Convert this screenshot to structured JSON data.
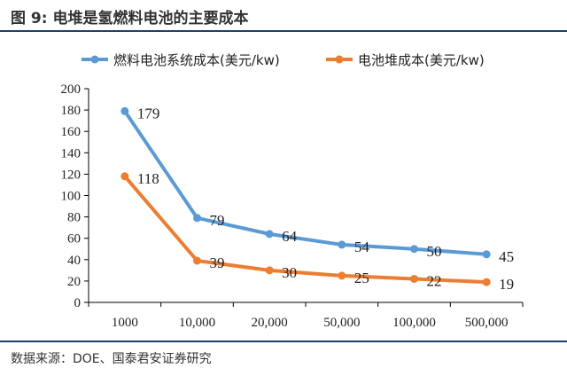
{
  "title": "图 9:  电堆是氢燃料电池的主要成本",
  "source": "数据来源：DOE、国泰君安证券研究",
  "chart_data": {
    "type": "line",
    "categories": [
      "1000",
      "10,000",
      "20,000",
      "50,000",
      "100,000",
      "500,000"
    ],
    "series": [
      {
        "name": "燃料电池系统成本(美元/kw)",
        "color": "#5b9bd5",
        "values": [
          179,
          79,
          64,
          54,
          50,
          45
        ]
      },
      {
        "name": "电池堆成本(美元/kw)",
        "color": "#ed7d31",
        "values": [
          118,
          39,
          30,
          25,
          22,
          19
        ]
      }
    ],
    "ylim": [
      0,
      200
    ],
    "yticks": [
      0,
      20,
      40,
      60,
      80,
      100,
      120,
      140,
      160,
      180,
      200
    ],
    "legend_position": "top",
    "grid": false
  }
}
